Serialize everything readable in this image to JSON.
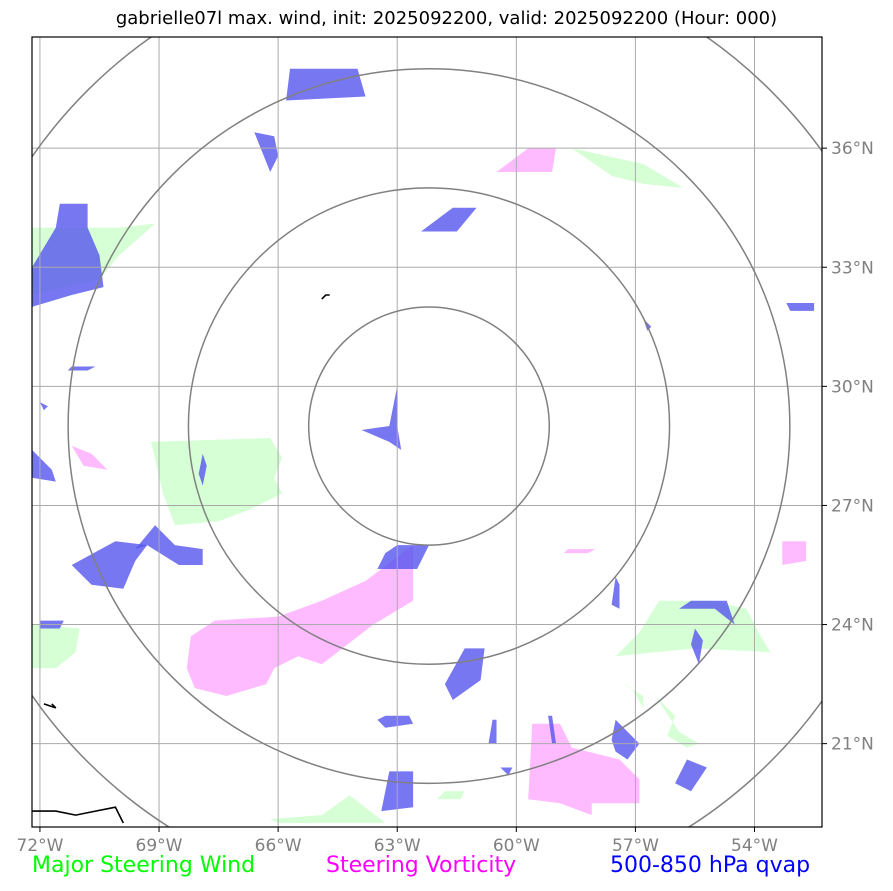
{
  "title": "gabrielle07l max. wind, init: 2025092200, valid: 2025092200 (Hour: 000)",
  "map": {
    "lon_range": [
      -72.2,
      -52.3
    ],
    "lat_range": [
      18.9,
      38.8
    ],
    "center": {
      "lon": -62.2,
      "lat": 29.0
    },
    "range_rings_deg": [
      3,
      6,
      9,
      12
    ],
    "lon_ticks": [
      {
        "value": -72,
        "label": "72°W"
      },
      {
        "value": -69,
        "label": "69°W"
      },
      {
        "value": -66,
        "label": "66°W"
      },
      {
        "value": -63,
        "label": "63°W"
      },
      {
        "value": -60,
        "label": "60°W"
      },
      {
        "value": -57,
        "label": "57°W"
      },
      {
        "value": -54,
        "label": "54°W"
      }
    ],
    "lat_ticks": [
      {
        "value": 36,
        "label": "36°N"
      },
      {
        "value": 33,
        "label": "33°N"
      },
      {
        "value": 30,
        "label": "30°N"
      },
      {
        "value": 27,
        "label": "27°N"
      },
      {
        "value": 24,
        "label": "24°N"
      },
      {
        "value": 21,
        "label": "21°N"
      }
    ],
    "grid": true,
    "colors": {
      "grid": "#aaaaaa",
      "rings": "#808080",
      "wind": "#ccffcc",
      "vorticity": "#ffaaff",
      "qvap": "#5555ee",
      "coast": "#000000"
    },
    "regions": {
      "qvap": [
        [
          [
            -65.7,
            38.0
          ],
          [
            -64.0,
            38.0
          ],
          [
            -63.8,
            37.3
          ],
          [
            -65.8,
            37.2
          ]
        ],
        [
          [
            -66.6,
            36.4
          ],
          [
            -66.1,
            36.3
          ],
          [
            -66.0,
            35.8
          ],
          [
            -66.2,
            35.4
          ]
        ],
        [
          [
            -61.0,
            34.5
          ],
          [
            -61.6,
            34.5
          ],
          [
            -62.0,
            34.2
          ],
          [
            -62.4,
            33.9
          ],
          [
            -61.5,
            33.9
          ]
        ],
        [
          [
            -71.5,
            34.6
          ],
          [
            -70.8,
            34.6
          ],
          [
            -70.8,
            34.0
          ],
          [
            -70.5,
            33.3
          ],
          [
            -70.4,
            32.5
          ],
          [
            -71.2,
            32.3
          ],
          [
            -72.2,
            32.0
          ],
          [
            -72.2,
            33.0
          ],
          [
            -71.6,
            34.0
          ]
        ],
        [
          [
            -53.2,
            32.1
          ],
          [
            -52.5,
            32.1
          ],
          [
            -52.5,
            31.9
          ],
          [
            -53.1,
            31.9
          ]
        ],
        [
          [
            -63.0,
            30.0
          ],
          [
            -63.0,
            29.0
          ],
          [
            -62.9,
            28.4
          ],
          [
            -63.2,
            28.6
          ],
          [
            -63.9,
            28.9
          ],
          [
            -63.2,
            29.0
          ]
        ],
        [
          [
            -72.2,
            28.4
          ],
          [
            -71.7,
            27.9
          ],
          [
            -71.6,
            27.6
          ],
          [
            -72.2,
            27.7
          ]
        ],
        [
          [
            -70.1,
            26.1
          ],
          [
            -69.3,
            26.0
          ],
          [
            -69.6,
            25.6
          ],
          [
            -69.9,
            24.9
          ],
          [
            -70.7,
            25.0
          ],
          [
            -71.2,
            25.5
          ]
        ],
        [
          [
            -69.1,
            26.5
          ],
          [
            -68.6,
            26.0
          ],
          [
            -67.9,
            25.9
          ],
          [
            -67.9,
            25.5
          ],
          [
            -68.5,
            25.5
          ],
          [
            -69.3,
            26.0
          ],
          [
            -69.6,
            25.9
          ]
        ],
        [
          [
            -63.0,
            26.0
          ],
          [
            -62.2,
            26.0
          ],
          [
            -62.5,
            25.4
          ],
          [
            -63.5,
            25.4
          ],
          [
            -63.3,
            25.8
          ]
        ],
        [
          [
            -55.6,
            24.6
          ],
          [
            -54.7,
            24.6
          ],
          [
            -54.5,
            24.0
          ],
          [
            -55.0,
            24.4
          ],
          [
            -55.9,
            24.4
          ]
        ],
        [
          [
            -61.3,
            23.4
          ],
          [
            -60.8,
            23.4
          ],
          [
            -60.9,
            22.6
          ],
          [
            -61.6,
            22.1
          ],
          [
            -61.8,
            22.5
          ]
        ],
        [
          [
            -63.3,
            21.7
          ],
          [
            -62.7,
            21.7
          ],
          [
            -62.6,
            21.5
          ],
          [
            -63.3,
            21.4
          ],
          [
            -63.5,
            21.6
          ]
        ],
        [
          [
            -57.5,
            21.6
          ],
          [
            -56.9,
            21.0
          ],
          [
            -57.2,
            20.6
          ],
          [
            -57.5,
            20.8
          ],
          [
            -57.6,
            21.1
          ]
        ],
        [
          [
            -55.7,
            20.6
          ],
          [
            -55.2,
            20.4
          ],
          [
            -55.6,
            19.8
          ],
          [
            -56.0,
            20.0
          ]
        ],
        [
          [
            -63.2,
            20.3
          ],
          [
            -62.6,
            20.3
          ],
          [
            -62.6,
            19.4
          ],
          [
            -63.4,
            19.3
          ],
          [
            -63.3,
            19.8
          ]
        ],
        [
          [
            -60.6,
            21.6
          ],
          [
            -60.5,
            21.6
          ],
          [
            -60.5,
            21.0
          ],
          [
            -60.7,
            21.0
          ]
        ],
        [
          [
            -55.5,
            23.9
          ],
          [
            -55.3,
            23.6
          ],
          [
            -55.4,
            23.0
          ],
          [
            -55.6,
            23.5
          ]
        ],
        [
          [
            -57.5,
            25.2
          ],
          [
            -57.4,
            25.0
          ],
          [
            -57.4,
            24.4
          ],
          [
            -57.6,
            24.5
          ]
        ],
        [
          [
            -67.9,
            28.3
          ],
          [
            -67.8,
            28.0
          ],
          [
            -67.9,
            27.5
          ],
          [
            -68.0,
            27.8
          ]
        ],
        [
          [
            -71.2,
            30.5
          ],
          [
            -70.6,
            30.5
          ],
          [
            -70.8,
            30.4
          ],
          [
            -71.3,
            30.4
          ]
        ],
        [
          [
            -59.2,
            21.7
          ],
          [
            -59.1,
            21.0
          ],
          [
            -59.0,
            21.0
          ],
          [
            -59.1,
            21.7
          ]
        ],
        [
          [
            -72.0,
            24.1
          ],
          [
            -71.4,
            24.1
          ],
          [
            -71.5,
            23.9
          ],
          [
            -72.0,
            23.9
          ]
        ],
        [
          [
            -72.0,
            29.6
          ],
          [
            -71.8,
            29.5
          ],
          [
            -71.9,
            29.4
          ]
        ],
        [
          [
            -60.4,
            20.4
          ],
          [
            -60.1,
            20.4
          ],
          [
            -60.2,
            20.2
          ]
        ],
        [
          [
            -56.8,
            31.7
          ],
          [
            -56.6,
            31.5
          ],
          [
            -56.7,
            31.4
          ]
        ]
      ],
      "wind": [
        [
          [
            -72.2,
            34.0
          ],
          [
            -70.0,
            34.0
          ],
          [
            -69.1,
            34.1
          ],
          [
            -70.0,
            33.3
          ],
          [
            -70.5,
            32.7
          ],
          [
            -72.2,
            32.3
          ]
        ],
        [
          [
            -58.6,
            36.0
          ],
          [
            -56.8,
            35.6
          ],
          [
            -55.8,
            35.0
          ],
          [
            -56.8,
            35.1
          ],
          [
            -57.6,
            35.3
          ]
        ],
        [
          [
            -69.2,
            28.6
          ],
          [
            -66.2,
            28.7
          ],
          [
            -65.9,
            28.2
          ],
          [
            -66.1,
            27.7
          ],
          [
            -65.9,
            27.3
          ],
          [
            -66.7,
            26.9
          ],
          [
            -67.5,
            26.6
          ],
          [
            -68.6,
            26.5
          ],
          [
            -68.9,
            27.3
          ]
        ],
        [
          [
            -56.4,
            24.6
          ],
          [
            -55.1,
            24.6
          ],
          [
            -54.2,
            24.4
          ],
          [
            -53.9,
            23.8
          ],
          [
            -53.6,
            23.3
          ],
          [
            -55.5,
            23.4
          ],
          [
            -57.5,
            23.2
          ],
          [
            -56.9,
            23.8
          ]
        ],
        [
          [
            -72.2,
            24.0
          ],
          [
            -71.0,
            23.9
          ],
          [
            -71.1,
            23.3
          ],
          [
            -71.6,
            22.9
          ],
          [
            -72.2,
            22.9
          ]
        ],
        [
          [
            -66.2,
            19.1
          ],
          [
            -64.9,
            19.2
          ],
          [
            -64.2,
            19.7
          ],
          [
            -63.3,
            19.0
          ],
          [
            -66.0,
            19.0
          ]
        ],
        [
          [
            -61.8,
            19.8
          ],
          [
            -61.3,
            19.8
          ],
          [
            -61.4,
            19.6
          ],
          [
            -62.0,
            19.6
          ]
        ],
        [
          [
            -56.5,
            22.2
          ],
          [
            -56.0,
            21.7
          ],
          [
            -56.2,
            21.2
          ],
          [
            -55.7,
            20.9
          ],
          [
            -55.4,
            21.0
          ],
          [
            -55.9,
            21.3
          ]
        ],
        [
          [
            -57.3,
            22.5
          ],
          [
            -56.8,
            22.2
          ],
          [
            -56.8,
            21.9
          ],
          [
            -57.1,
            22.4
          ]
        ]
      ],
      "vorticity": [
        [
          [
            -59.7,
            36.0
          ],
          [
            -59.0,
            36.0
          ],
          [
            -59.1,
            35.4
          ],
          [
            -59.6,
            35.4
          ],
          [
            -60.5,
            35.4
          ]
        ],
        [
          [
            -71.2,
            28.5
          ],
          [
            -70.7,
            28.3
          ],
          [
            -70.3,
            27.9
          ],
          [
            -70.9,
            28.0
          ]
        ],
        [
          [
            -62.6,
            26.0
          ],
          [
            -62.6,
            24.6
          ],
          [
            -63.6,
            24.0
          ],
          [
            -64.9,
            23.0
          ],
          [
            -65.5,
            23.2
          ],
          [
            -66.1,
            22.9
          ],
          [
            -66.3,
            22.5
          ],
          [
            -67.3,
            22.2
          ],
          [
            -68.1,
            22.4
          ],
          [
            -68.3,
            22.9
          ],
          [
            -68.2,
            23.7
          ],
          [
            -67.6,
            24.1
          ],
          [
            -66.0,
            24.2
          ],
          [
            -64.9,
            24.6
          ],
          [
            -63.8,
            25.1
          ]
        ],
        [
          [
            -53.3,
            26.1
          ],
          [
            -52.7,
            26.1
          ],
          [
            -52.7,
            25.6
          ],
          [
            -53.3,
            25.5
          ]
        ],
        [
          [
            -58.7,
            25.9
          ],
          [
            -58.0,
            25.9
          ],
          [
            -58.2,
            25.8
          ],
          [
            -58.8,
            25.8
          ]
        ],
        [
          [
            -59.6,
            21.5
          ],
          [
            -58.9,
            21.5
          ],
          [
            -58.6,
            20.9
          ],
          [
            -57.4,
            20.6
          ],
          [
            -56.9,
            20.1
          ],
          [
            -56.9,
            19.5
          ],
          [
            -58.1,
            19.5
          ],
          [
            -58.1,
            19.2
          ],
          [
            -58.9,
            19.5
          ],
          [
            -59.7,
            19.6
          ]
        ]
      ],
      "coast": [
        [
          [
            -72.2,
            19.3
          ],
          [
            -71.6,
            19.3
          ],
          [
            -71.1,
            19.2
          ],
          [
            -70.6,
            19.3
          ],
          [
            -70.1,
            19.4
          ],
          [
            -69.9,
            19.0
          ]
        ],
        [
          [
            -71.9,
            22.0
          ],
          [
            -71.6,
            21.9
          ],
          [
            -71.7,
            22.0
          ]
        ],
        [
          [
            -64.7,
            32.3
          ],
          [
            -64.8,
            32.3
          ],
          [
            -64.9,
            32.2
          ]
        ]
      ]
    }
  },
  "legend": {
    "wind": {
      "label": "Major Steering Wind",
      "color": "#00ff00"
    },
    "vorticity": {
      "label": "Steering Vorticity",
      "color": "#ff00ff"
    },
    "qvap": {
      "label": "500-850 hPa qvap",
      "color": "#0000ff"
    }
  }
}
